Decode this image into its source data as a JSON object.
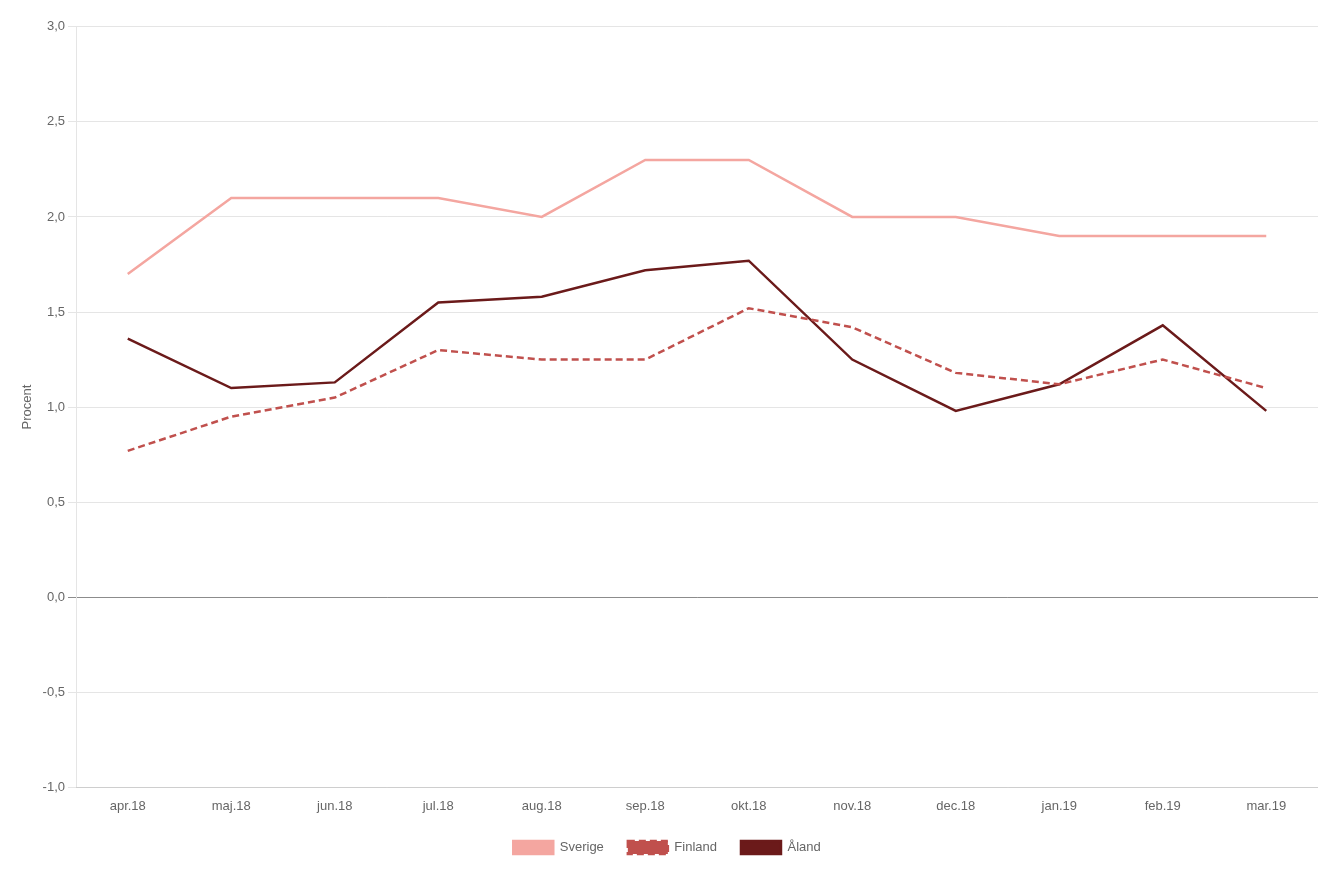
{
  "chart_data": {
    "type": "line",
    "categories": [
      "apr.18",
      "maj.18",
      "jun.18",
      "jul.18",
      "aug.18",
      "sep.18",
      "okt.18",
      "nov.18",
      "dec.18",
      "jan.19",
      "feb.19",
      "mar.19"
    ],
    "series": [
      {
        "name": "Sverige",
        "color": "#f4a6a0",
        "line_style": "solid",
        "marker": "none",
        "values": [
          1.7,
          2.1,
          2.1,
          2.1,
          2.0,
          2.3,
          2.3,
          2.0,
          2.0,
          1.9,
          1.9,
          1.9
        ]
      },
      {
        "name": "Finland",
        "color": "#c0504d",
        "line_style": "dashed",
        "marker": "none",
        "values": [
          0.77,
          0.95,
          1.05,
          1.3,
          1.25,
          1.25,
          1.52,
          1.42,
          1.18,
          1.12,
          1.25,
          1.1
        ]
      },
      {
        "name": "Åland",
        "color": "#6b1a1a",
        "line_style": "solid",
        "marker": "none",
        "values": [
          1.36,
          1.1,
          1.13,
          1.55,
          1.58,
          1.72,
          1.77,
          1.25,
          0.98,
          1.12,
          1.43,
          0.98
        ]
      }
    ],
    "ylabel": "Procent",
    "ylim": [
      -1.0,
      3.0
    ],
    "yticks": [
      {
        "value": -1.0,
        "label": "-1,0"
      },
      {
        "value": -0.5,
        "label": "-0,5"
      },
      {
        "value": 0.0,
        "label": "0,0"
      },
      {
        "value": 0.5,
        "label": "0,5"
      },
      {
        "value": 1.0,
        "label": "1,0"
      },
      {
        "value": 1.5,
        "label": "1,5"
      },
      {
        "value": 2.0,
        "label": "2,0"
      },
      {
        "value": 2.5,
        "label": "2,5"
      },
      {
        "value": 3.0,
        "label": "3,0"
      }
    ],
    "grid": true,
    "legend": "bottom"
  }
}
